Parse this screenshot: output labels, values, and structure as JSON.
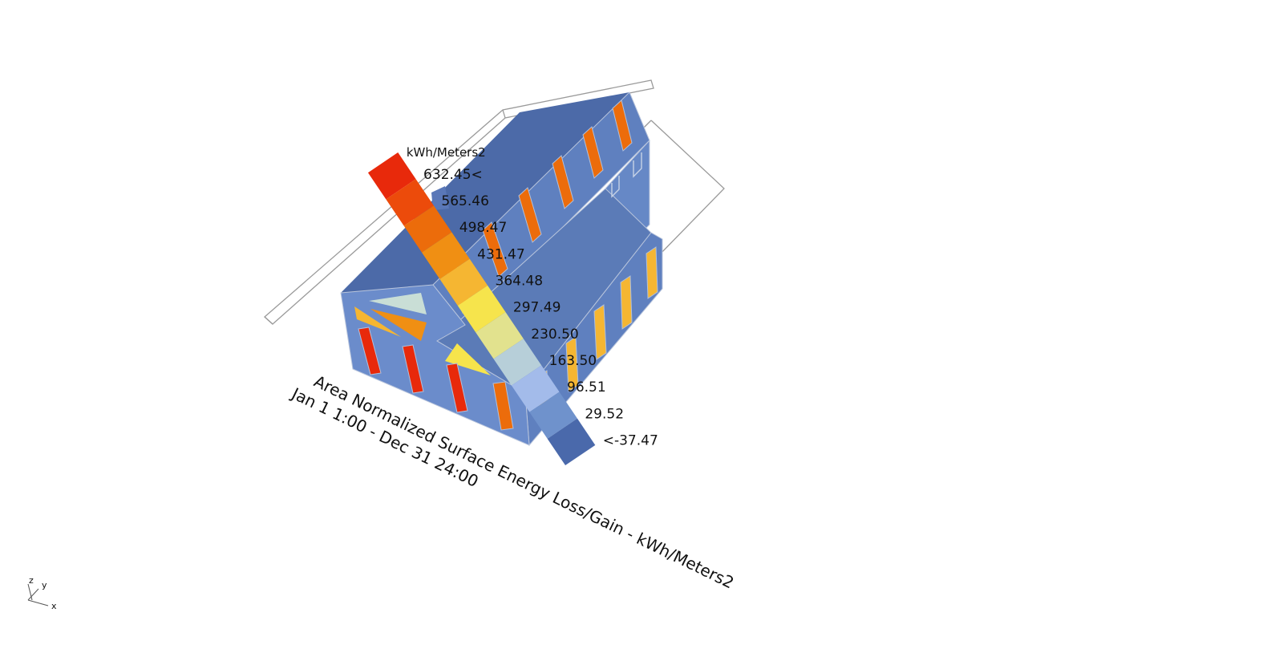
{
  "title": "Area Normalized Surface Energy Loss/Gain  - kWh/Meters2",
  "period": "Jan 1 1:00 - Dec 31 24:00",
  "legend": {
    "unit": "kWh/Meters2",
    "labels": [
      "632.45<",
      "565.46",
      "498.47",
      "431.47",
      "364.48",
      "297.49",
      "230.50",
      "163.50",
      "96.51",
      "29.52",
      "<-37.47"
    ],
    "colors": [
      "#e8290b",
      "#ec4b0b",
      "#ec6c0b",
      "#f08f13",
      "#f5b632",
      "#f6e44c",
      "#e2e28e",
      "#b7cfd9",
      "#a3bbea",
      "#6f92cc",
      "#4a69ab"
    ]
  },
  "axes": {
    "x": "x",
    "y": "y",
    "z": "z"
  },
  "colors": {
    "roof_dark": "#4c6aa8",
    "wall_mid": "#5f80bf",
    "wall_light": "#6b8ccb",
    "window_red": "#e8290b",
    "window_orange": "#ec6c0b",
    "window_amber": "#f5b632",
    "window_yellow": "#f6e44c"
  }
}
